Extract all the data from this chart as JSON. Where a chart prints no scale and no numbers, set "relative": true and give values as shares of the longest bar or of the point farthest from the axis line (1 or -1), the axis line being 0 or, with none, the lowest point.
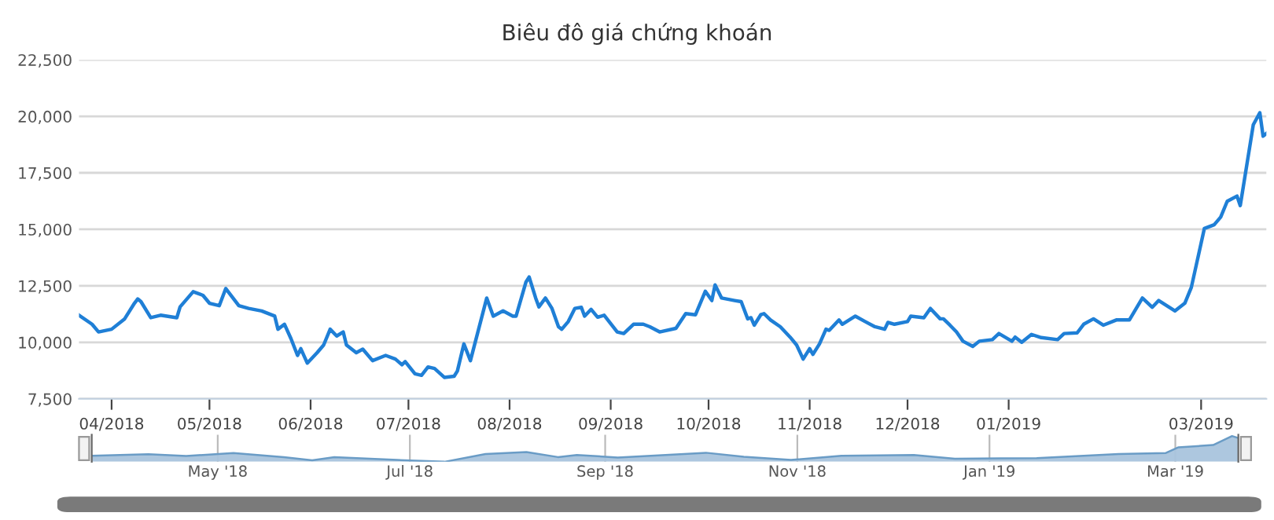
{
  "chart_data": [
    {
      "type": "line",
      "title": "Biêu đô giá chứng khoán",
      "grid": "y",
      "legend": false,
      "marker": "none",
      "line_style": "solid",
      "x": [
        "2018-03-22",
        "2018-03-26",
        "2018-03-28",
        "2018-04-01",
        "2018-04-05",
        "2018-04-08",
        "2018-04-09",
        "2018-04-10",
        "2018-04-13",
        "2018-04-16",
        "2018-04-21",
        "2018-04-22",
        "2018-04-26",
        "2018-04-29",
        "2018-05-01",
        "2018-05-04",
        "2018-05-06",
        "2018-05-10",
        "2018-05-13",
        "2018-05-17",
        "2018-05-21",
        "2018-05-22",
        "2018-05-24",
        "2018-05-26",
        "2018-05-28",
        "2018-05-29",
        "2018-05-31",
        "2018-06-03",
        "2018-06-05",
        "2018-06-07",
        "2018-06-09",
        "2018-06-11",
        "2018-06-12",
        "2018-06-15",
        "2018-06-17",
        "2018-06-20",
        "2018-06-24",
        "2018-06-27",
        "2018-06-29",
        "2018-06-30",
        "2018-07-03",
        "2018-07-05",
        "2018-07-07",
        "2018-07-09",
        "2018-07-12",
        "2018-07-15",
        "2018-07-16",
        "2018-07-18",
        "2018-07-20",
        "2018-07-25",
        "2018-07-27",
        "2018-07-30",
        "2018-08-02",
        "2018-08-03",
        "2018-08-06",
        "2018-08-07",
        "2018-08-09",
        "2018-08-10",
        "2018-08-12",
        "2018-08-14",
        "2018-08-16",
        "2018-08-17",
        "2018-08-19",
        "2018-08-21",
        "2018-08-23",
        "2018-08-24",
        "2018-08-26",
        "2018-08-28",
        "2018-08-30",
        "2018-09-03",
        "2018-09-05",
        "2018-09-08",
        "2018-09-11",
        "2018-09-13",
        "2018-09-16",
        "2018-09-21",
        "2018-09-24",
        "2018-09-27",
        "2018-09-30",
        "2018-10-02",
        "2018-10-03",
        "2018-10-05",
        "2018-10-09",
        "2018-10-11",
        "2018-10-13",
        "2018-10-14",
        "2018-10-15",
        "2018-10-17",
        "2018-10-18",
        "2018-10-20",
        "2018-10-23",
        "2018-10-26",
        "2018-10-28",
        "2018-10-30",
        "2018-11-01",
        "2018-11-02",
        "2018-11-04",
        "2018-11-06",
        "2018-11-07",
        "2018-11-10",
        "2018-11-11",
        "2018-11-15",
        "2018-11-18",
        "2018-11-21",
        "2018-11-24",
        "2018-11-25",
        "2018-11-27",
        "2018-12-01",
        "2018-12-02",
        "2018-12-06",
        "2018-12-08",
        "2018-12-11",
        "2018-12-12",
        "2018-12-14",
        "2018-12-16",
        "2018-12-18",
        "2018-12-21",
        "2018-12-23",
        "2018-12-27",
        "2018-12-29",
        "2019-01-02",
        "2019-01-03",
        "2019-01-05",
        "2019-01-08",
        "2019-01-11",
        "2019-01-16",
        "2019-01-18",
        "2019-01-22",
        "2019-01-24",
        "2019-01-27",
        "2019-01-30",
        "2019-02-03",
        "2019-02-07",
        "2019-02-11",
        "2019-02-14",
        "2019-02-16",
        "2019-02-21",
        "2019-02-24",
        "2019-02-26",
        "2019-03-02",
        "2019-03-05",
        "2019-03-07",
        "2019-03-09",
        "2019-03-12",
        "2019-03-13",
        "2019-03-17",
        "2019-03-19",
        "2019-03-20",
        "2019-03-21"
      ],
      "series": [
        {
          "color": "#1f7fd6",
          "values": [
            11200,
            10800,
            10460,
            10580,
            11040,
            11730,
            11920,
            11800,
            11090,
            11200,
            11090,
            11570,
            12240,
            12080,
            11730,
            11620,
            12380,
            11620,
            11500,
            11390,
            11160,
            10580,
            10800,
            10160,
            9420,
            9720,
            9080,
            9540,
            9880,
            10580,
            10280,
            10460,
            9880,
            9540,
            9700,
            9190,
            9420,
            9260,
            9010,
            9150,
            8610,
            8540,
            8910,
            8840,
            8450,
            8500,
            8730,
            9930,
            9190,
            11960,
            11160,
            11390,
            11160,
            11160,
            12660,
            12890,
            11960,
            11570,
            11960,
            11500,
            10690,
            10580,
            10920,
            11500,
            11550,
            11160,
            11460,
            11110,
            11200,
            10460,
            10390,
            10800,
            10800,
            10690,
            10460,
            10620,
            11270,
            11220,
            12260,
            11850,
            12540,
            11960,
            11850,
            11800,
            11040,
            11090,
            10760,
            11220,
            11270,
            10990,
            10690,
            10230,
            9880,
            9260,
            9720,
            9470,
            9930,
            10580,
            10530,
            10990,
            10800,
            11160,
            10920,
            10690,
            10580,
            10880,
            10800,
            10920,
            11160,
            11090,
            11500,
            11040,
            11040,
            10760,
            10460,
            10050,
            9820,
            10050,
            10120,
            10390,
            10050,
            10230,
            10000,
            10350,
            10210,
            10120,
            10390,
            10420,
            10800,
            11040,
            10760,
            10990,
            10990,
            11960,
            11550,
            11850,
            11390,
            11730,
            12430,
            15040,
            15200,
            15540,
            16240,
            16470,
            16050,
            19630,
            20160,
            19120,
            19240
          ]
        }
      ],
      "xlim": [
        "2018-03-22",
        "2019-03-21"
      ],
      "xticks": [
        {
          "value": "2018-04-01",
          "label": "04/2018"
        },
        {
          "value": "2018-05-01",
          "label": "05/2018"
        },
        {
          "value": "2018-06-01",
          "label": "06/2018"
        },
        {
          "value": "2018-07-01",
          "label": "07/2018"
        },
        {
          "value": "2018-08-01",
          "label": "08/2018"
        },
        {
          "value": "2018-09-01",
          "label": "09/2018"
        },
        {
          "value": "2018-10-01",
          "label": "10/2018"
        },
        {
          "value": "2018-11-01",
          "label": "11/2018"
        },
        {
          "value": "2018-12-01",
          "label": "12/2018"
        },
        {
          "value": "2019-01-01",
          "label": "01/2019"
        },
        {
          "value": "2019-03-01",
          "label": "03/2019"
        }
      ],
      "ylim": [
        7500,
        22500
      ],
      "yticks": [
        {
          "value": 7500,
          "label": "7,500"
        },
        {
          "value": 10000,
          "label": "10,000"
        },
        {
          "value": 12500,
          "label": "12,500"
        },
        {
          "value": 15000,
          "label": "15,000"
        },
        {
          "value": 17500,
          "label": "17,500"
        },
        {
          "value": 20000,
          "label": "20,000"
        },
        {
          "value": 22500,
          "label": "22,500"
        }
      ]
    },
    {
      "type": "area",
      "relative": true,
      "grid": "x",
      "legend": false,
      "tick_labels": "x",
      "x": [
        "2018-03-22",
        "2018-04-09",
        "2018-04-21",
        "2018-05-06",
        "2018-05-22",
        "2018-05-31",
        "2018-06-07",
        "2018-06-27",
        "2018-07-12",
        "2018-07-25",
        "2018-08-07",
        "2018-08-17",
        "2018-08-23",
        "2018-09-05",
        "2018-10-03",
        "2018-10-15",
        "2018-10-30",
        "2018-11-15",
        "2018-12-08",
        "2018-12-21",
        "2019-01-16",
        "2019-02-11",
        "2019-02-26",
        "2019-03-02",
        "2019-03-13",
        "2019-03-19",
        "2019-03-21"
      ],
      "series": [
        {
          "color": "#a9c4dd",
          "values": [
            0.235,
            0.296,
            0.225,
            0.336,
            0.182,
            0.054,
            0.182,
            0.069,
            0,
            0.3,
            0.379,
            0.182,
            0.265,
            0.166,
            0.35,
            0.197,
            0.069,
            0.229,
            0.259,
            0.116,
            0.142,
            0.3,
            0.34,
            0.563,
            0.649,
            1,
            0.921
          ]
        }
      ],
      "xlim": [
        "2018-03-22",
        "2019-03-21"
      ],
      "xticks": [
        {
          "value": "2018-05-01",
          "label": "May '18"
        },
        {
          "value": "2018-07-01",
          "label": "Jul '18"
        },
        {
          "value": "2018-09-01",
          "label": "Sep '18"
        },
        {
          "value": "2018-11-01",
          "label": "Nov '18"
        },
        {
          "value": "2019-01-01",
          "label": "Jan '19"
        },
        {
          "value": "2019-03-01",
          "label": "Mar '19"
        }
      ]
    }
  ]
}
